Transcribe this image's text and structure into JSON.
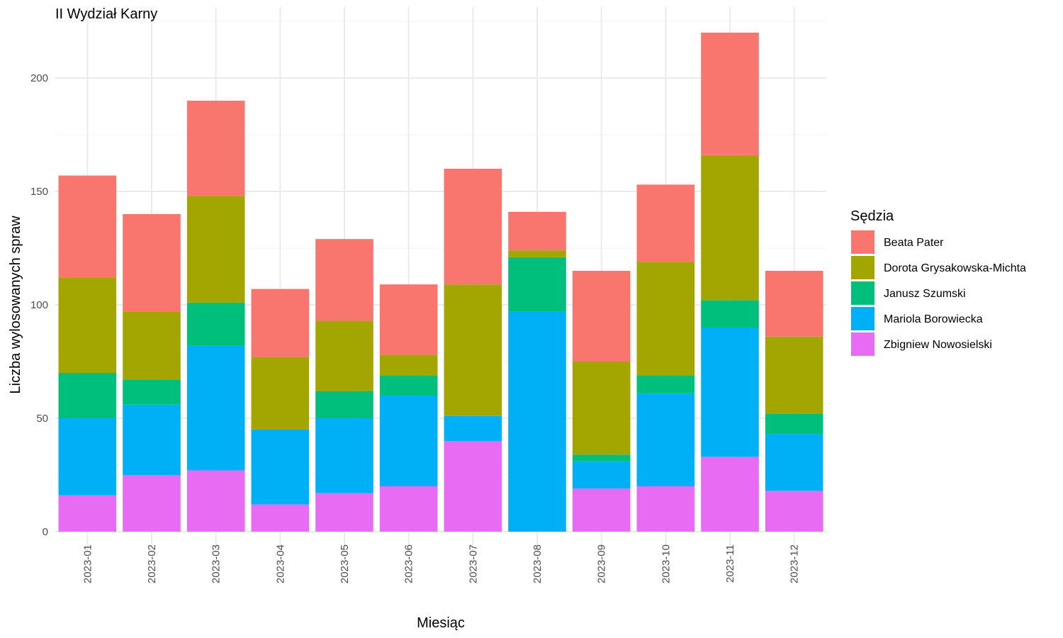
{
  "chart_data": {
    "type": "bar",
    "stacked": true,
    "title": "II Wydział Karny",
    "xlabel": "Miesiąc",
    "ylabel": "Liczba wylosowanych spraw",
    "ylim": [
      0,
      230
    ],
    "yticks": [
      0,
      50,
      100,
      150,
      200
    ],
    "grid": true,
    "legend_title": "Sędzia",
    "legend_position": "right",
    "categories": [
      "2023-01",
      "2023-02",
      "2023-03",
      "2023-04",
      "2023-05",
      "2023-06",
      "2023-07",
      "2023-08",
      "2023-09",
      "2023-10",
      "2023-11",
      "2023-12"
    ],
    "series": [
      {
        "name": "Zbigniew Nowosielski",
        "color": "#E76BF3",
        "values": [
          16,
          25,
          27,
          12,
          17,
          20,
          40,
          0,
          19,
          20,
          33,
          18
        ]
      },
      {
        "name": "Mariola Borowiecka",
        "color": "#00B0F6",
        "values": [
          34,
          31,
          55,
          33,
          33,
          40,
          11,
          97,
          12,
          41,
          57,
          25
        ]
      },
      {
        "name": "Janusz Szumski",
        "color": "#00BF7D",
        "values": [
          20,
          11,
          19,
          0,
          12,
          9,
          0,
          24,
          3,
          8,
          12,
          9
        ]
      },
      {
        "name": "Dorota Grysakowska-Michta",
        "color": "#A3A500",
        "values": [
          42,
          30,
          47,
          32,
          31,
          9,
          58,
          3,
          41,
          50,
          64,
          34
        ]
      },
      {
        "name": "Beata Pater",
        "color": "#F8766D",
        "values": [
          45,
          43,
          42,
          30,
          36,
          31,
          51,
          17,
          40,
          34,
          54,
          29
        ]
      }
    ],
    "legend_order": [
      "Beata Pater",
      "Dorota Grysakowska-Michta",
      "Janusz Szumski",
      "Mariola Borowiecka",
      "Zbigniew Nowosielski"
    ]
  }
}
